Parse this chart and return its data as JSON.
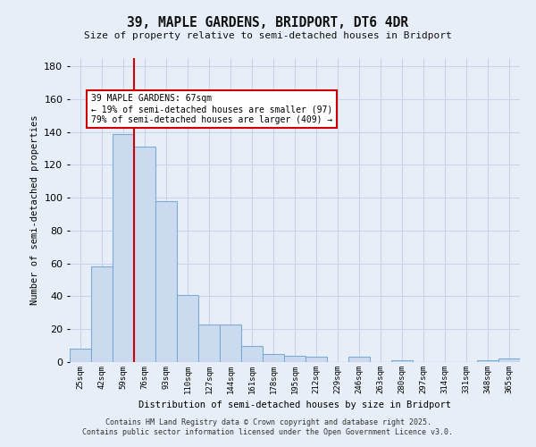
{
  "title_line1": "39, MAPLE GARDENS, BRIDPORT, DT6 4DR",
  "title_line2": "Size of property relative to semi-detached houses in Bridport",
  "xlabel": "Distribution of semi-detached houses by size in Bridport",
  "ylabel": "Number of semi-detached properties",
  "bar_labels": [
    "25sqm",
    "42sqm",
    "59sqm",
    "76sqm",
    "93sqm",
    "110sqm",
    "127sqm",
    "144sqm",
    "161sqm",
    "178sqm",
    "195sqm",
    "212sqm",
    "229sqm",
    "246sqm",
    "263sqm",
    "280sqm",
    "297sqm",
    "314sqm",
    "331sqm",
    "348sqm",
    "365sqm"
  ],
  "bar_values": [
    8,
    58,
    139,
    131,
    98,
    41,
    23,
    23,
    10,
    5,
    4,
    3,
    0,
    3,
    0,
    1,
    0,
    0,
    0,
    1,
    2
  ],
  "bar_color": "#ccdaf0",
  "bar_edge_color": "#7aadd6",
  "grid_color": "#c8d4e8",
  "background_color": "#e8eef8",
  "red_line_color": "#cc0000",
  "red_line_x": 2.5,
  "annotation_text": "39 MAPLE GARDENS: 67sqm\n← 19% of semi-detached houses are smaller (97)\n79% of semi-detached houses are larger (409) →",
  "annotation_box_color": "#ffffff",
  "annotation_box_edge": "#cc0000",
  "ylim": [
    0,
    185
  ],
  "yticks": [
    0,
    20,
    40,
    60,
    80,
    100,
    120,
    140,
    160,
    180
  ],
  "footer_line1": "Contains HM Land Registry data © Crown copyright and database right 2025.",
  "footer_line2": "Contains public sector information licensed under the Open Government Licence v3.0."
}
